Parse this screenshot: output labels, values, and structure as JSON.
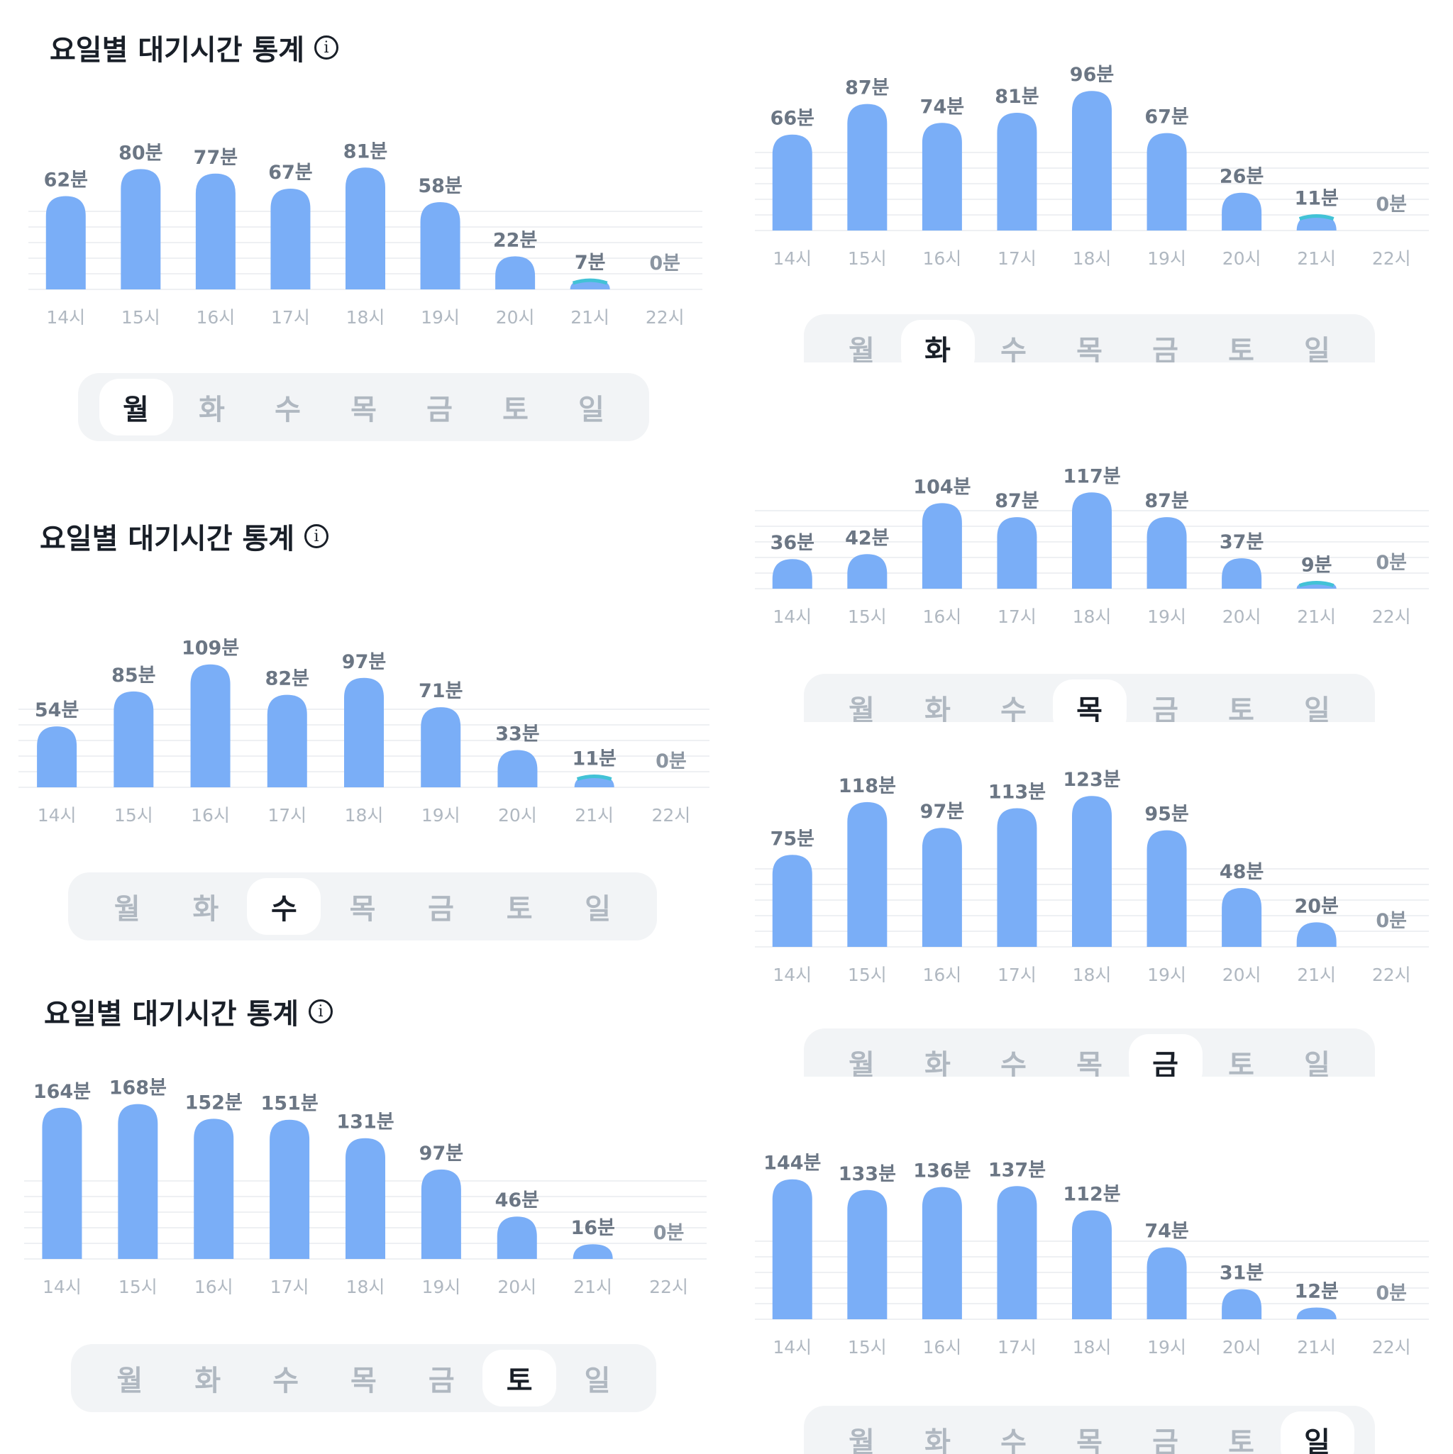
{
  "title": "요일별 대기시간 통계",
  "info_icon": "info-icon",
  "tab_labels": [
    "월",
    "화",
    "수",
    "목",
    "금",
    "토",
    "일"
  ],
  "colors": {
    "bar": "#7aaef7",
    "bar_low": "#42c2d6",
    "grid": "#eef0f3"
  },
  "chart_data": [
    {
      "type": "bar",
      "selected_day": "월",
      "categories": [
        "14시",
        "15시",
        "16시",
        "17시",
        "18시",
        "19시",
        "20시",
        "21시",
        "22시"
      ],
      "values": [
        62,
        80,
        77,
        67,
        81,
        58,
        22,
        7,
        0
      ],
      "labels": [
        "62분",
        "80분",
        "77분",
        "67분",
        "81분",
        "58분",
        "22분",
        "7분",
        "0분"
      ]
    },
    {
      "type": "bar",
      "selected_day": "화",
      "categories": [
        "14시",
        "15시",
        "16시",
        "17시",
        "18시",
        "19시",
        "20시",
        "21시",
        "22시"
      ],
      "values": [
        66,
        87,
        74,
        81,
        96,
        67,
        26,
        11,
        0
      ],
      "labels": [
        "66분",
        "87분",
        "74분",
        "81분",
        "96분",
        "67분",
        "26분",
        "11분",
        "0분"
      ]
    },
    {
      "type": "bar",
      "selected_day": "수",
      "categories": [
        "14시",
        "15시",
        "16시",
        "17시",
        "18시",
        "19시",
        "20시",
        "21시",
        "22시"
      ],
      "values": [
        54,
        85,
        109,
        82,
        97,
        71,
        33,
        11,
        0
      ],
      "labels": [
        "54분",
        "85분",
        "109분",
        "82분",
        "97분",
        "71분",
        "33분",
        "11분",
        "0분"
      ]
    },
    {
      "type": "bar",
      "selected_day": "목",
      "categories": [
        "14시",
        "15시",
        "16시",
        "17시",
        "18시",
        "19시",
        "20시",
        "21시",
        "22시"
      ],
      "values": [
        36,
        42,
        104,
        87,
        117,
        87,
        37,
        9,
        0
      ],
      "labels": [
        "36분",
        "42분",
        "104분",
        "87분",
        "117분",
        "87분",
        "37분",
        "9분",
        "0분"
      ]
    },
    {
      "type": "bar",
      "selected_day": "금",
      "categories": [
        "14시",
        "15시",
        "16시",
        "17시",
        "18시",
        "19시",
        "20시",
        "21시",
        "22시"
      ],
      "values": [
        75,
        118,
        97,
        113,
        123,
        95,
        48,
        20,
        0
      ],
      "labels": [
        "75분",
        "118분",
        "97분",
        "113분",
        "123분",
        "95분",
        "48분",
        "20분",
        "0분"
      ]
    },
    {
      "type": "bar",
      "selected_day": "토",
      "categories": [
        "14시",
        "15시",
        "16시",
        "17시",
        "18시",
        "19시",
        "20시",
        "21시",
        "22시"
      ],
      "values": [
        164,
        168,
        152,
        151,
        131,
        97,
        46,
        16,
        0
      ],
      "labels": [
        "164분",
        "168분",
        "152분",
        "151분",
        "131분",
        "97분",
        "46분",
        "16분",
        "0분"
      ]
    },
    {
      "type": "bar",
      "selected_day": "일",
      "categories": [
        "14시",
        "15시",
        "16시",
        "17시",
        "18시",
        "19시",
        "20시",
        "21시",
        "22시"
      ],
      "values": [
        144,
        133,
        136,
        137,
        112,
        74,
        31,
        12,
        0
      ],
      "labels": [
        "144분",
        "133분",
        "136분",
        "137분",
        "112분",
        "74분",
        "31분",
        "12분",
        "0분"
      ]
    }
  ]
}
